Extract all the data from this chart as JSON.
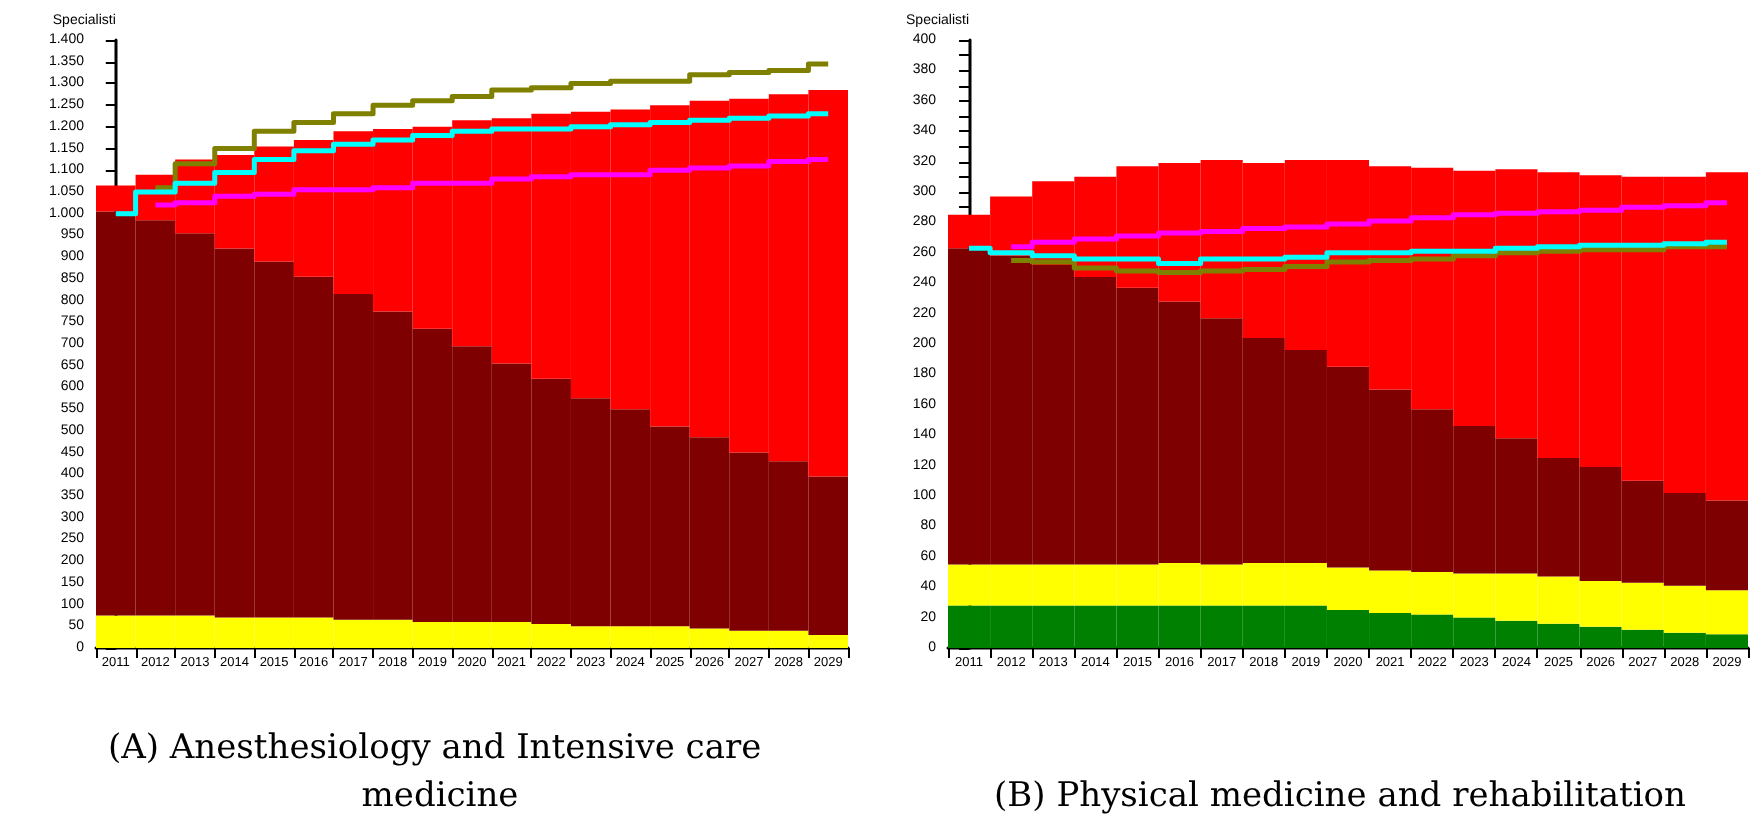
{
  "chart_data": [
    {
      "type": "bar",
      "title": "(A) Anesthesiology and Intensive care medicine",
      "ylabel": "Specialisti",
      "stacked": true,
      "grid": false,
      "categories": [
        "2011",
        "2012",
        "2013",
        "2014",
        "2015",
        "2016",
        "2017",
        "2018",
        "2019",
        "2020",
        "2021",
        "2022",
        "2023",
        "2024",
        "2025",
        "2026",
        "2027",
        "2028",
        "2029"
      ],
      "ylim": [
        0,
        1400
      ],
      "yticks": [
        0,
        50,
        100,
        150,
        200,
        250,
        300,
        350,
        400,
        450,
        500,
        550,
        600,
        650,
        700,
        750,
        800,
        850,
        900,
        950,
        {
          "value": 1000,
          "label": "1.000"
        },
        {
          "value": 1050,
          "label": "1.050"
        },
        {
          "value": 1100,
          "label": "1.100"
        },
        {
          "value": 1150,
          "label": "1.150"
        },
        {
          "value": 1200,
          "label": "1.200"
        },
        {
          "value": 1250,
          "label": "1.250"
        },
        {
          "value": 1300,
          "label": "1.300"
        },
        {
          "value": 1350,
          "label": "1.350"
        },
        {
          "value": 1400,
          "label": "1.400"
        }
      ],
      "series": [
        {
          "type": "bar",
          "color": "#ffff00",
          "values": [
            75,
            75,
            75,
            70,
            70,
            70,
            65,
            65,
            60,
            60,
            60,
            55,
            50,
            50,
            50,
            45,
            40,
            40,
            30
          ]
        },
        {
          "type": "bar",
          "color": "#7f0000",
          "values": [
            930,
            910,
            880,
            850,
            820,
            785,
            750,
            710,
            675,
            635,
            595,
            565,
            525,
            500,
            460,
            440,
            410,
            390,
            365
          ]
        },
        {
          "type": "bar",
          "color": "#ff0000",
          "values": [
            60,
            105,
            170,
            215,
            265,
            315,
            375,
            420,
            465,
            520,
            565,
            610,
            660,
            690,
            740,
            775,
            815,
            845,
            890
          ]
        },
        {
          "type": "step",
          "color": "#808000",
          "values": [
            null,
            1060,
            1115,
            1150,
            1190,
            1210,
            1230,
            1250,
            1260,
            1270,
            1285,
            1290,
            1300,
            1305,
            1305,
            1320,
            1325,
            1330,
            1345
          ]
        },
        {
          "type": "step",
          "color": "#ff00ff",
          "values": [
            null,
            1020,
            1025,
            1040,
            1045,
            1055,
            1055,
            1060,
            1070,
            1070,
            1080,
            1085,
            1090,
            1090,
            1100,
            1105,
            1110,
            1120,
            1125
          ]
        },
        {
          "type": "step",
          "color": "#00ffff",
          "values": [
            1000,
            1050,
            1070,
            1095,
            1125,
            1145,
            1160,
            1170,
            1180,
            1190,
            1195,
            1195,
            1200,
            1205,
            1210,
            1215,
            1220,
            1225,
            1230
          ]
        }
      ]
    },
    {
      "type": "bar",
      "title": "(B) Physical medicine and rehabilitation",
      "ylabel": "Specialisti",
      "stacked": true,
      "grid": false,
      "categories": [
        "2011",
        "2012",
        "2013",
        "2014",
        "2015",
        "2016",
        "2017",
        "2018",
        "2019",
        "2020",
        "2021",
        "2022",
        "2023",
        "2024",
        "2025",
        "2026",
        "2027",
        "2028",
        "2029"
      ],
      "ylim": [
        0,
        400
      ],
      "yticks": [
        0,
        {
          "value": 10,
          "label": null
        },
        20,
        {
          "value": 30,
          "label": null
        },
        40,
        {
          "value": 50,
          "label": null
        },
        60,
        {
          "value": 70,
          "label": null
        },
        80,
        {
          "value": 90,
          "label": null
        },
        100,
        {
          "value": 110,
          "label": null
        },
        120,
        {
          "value": 130,
          "label": null
        },
        140,
        {
          "value": 150,
          "label": null
        },
        160,
        {
          "value": 170,
          "label": null
        },
        180,
        {
          "value": 190,
          "label": null
        },
        200,
        {
          "value": 210,
          "label": null
        },
        220,
        {
          "value": 230,
          "label": null
        },
        240,
        {
          "value": 250,
          "label": null
        },
        260,
        {
          "value": 270,
          "label": null
        },
        280,
        {
          "value": 290,
          "label": null
        },
        300,
        {
          "value": 310,
          "label": null
        },
        320,
        {
          "value": 330,
          "label": null
        },
        340,
        {
          "value": 350,
          "label": null
        },
        360,
        {
          "value": 370,
          "label": null
        },
        380,
        {
          "value": 390,
          "label": null
        },
        400
      ],
      "series": [
        {
          "type": "bar",
          "color": "#008000",
          "values": [
            28,
            28,
            28,
            28,
            28,
            28,
            28,
            28,
            28,
            25,
            23,
            22,
            20,
            18,
            16,
            14,
            12,
            10,
            9
          ]
        },
        {
          "type": "bar",
          "color": "#ffff00",
          "values": [
            27,
            27,
            27,
            27,
            27,
            28,
            27,
            28,
            28,
            28,
            28,
            28,
            29,
            31,
            31,
            30,
            31,
            31,
            29
          ]
        },
        {
          "type": "bar",
          "color": "#7f0000",
          "values": [
            208,
            203,
            197,
            189,
            182,
            172,
            162,
            148,
            140,
            132,
            119,
            107,
            97,
            89,
            78,
            75,
            67,
            61,
            59
          ]
        },
        {
          "type": "bar",
          "color": "#ff0000",
          "values": [
            22,
            39,
            55,
            66,
            80,
            91,
            104,
            115,
            125,
            136,
            147,
            159,
            168,
            177,
            188,
            192,
            200,
            208,
            216
          ]
        },
        {
          "type": "step",
          "color": "#808000",
          "values": [
            null,
            255,
            254,
            250,
            248,
            247,
            248,
            249,
            251,
            254,
            255,
            256,
            258,
            260,
            261,
            262,
            262,
            264,
            264
          ]
        },
        {
          "type": "step",
          "color": "#ff00ff",
          "values": [
            null,
            264,
            267,
            269,
            271,
            273,
            274,
            276,
            277,
            279,
            281,
            283,
            285,
            286,
            287,
            288,
            290,
            291,
            293
          ]
        },
        {
          "type": "step",
          "color": "#00ffff",
          "values": [
            263,
            260,
            258,
            256,
            256,
            253,
            256,
            256,
            257,
            260,
            260,
            261,
            261,
            263,
            264,
            265,
            265,
            266,
            267
          ]
        }
      ]
    }
  ]
}
